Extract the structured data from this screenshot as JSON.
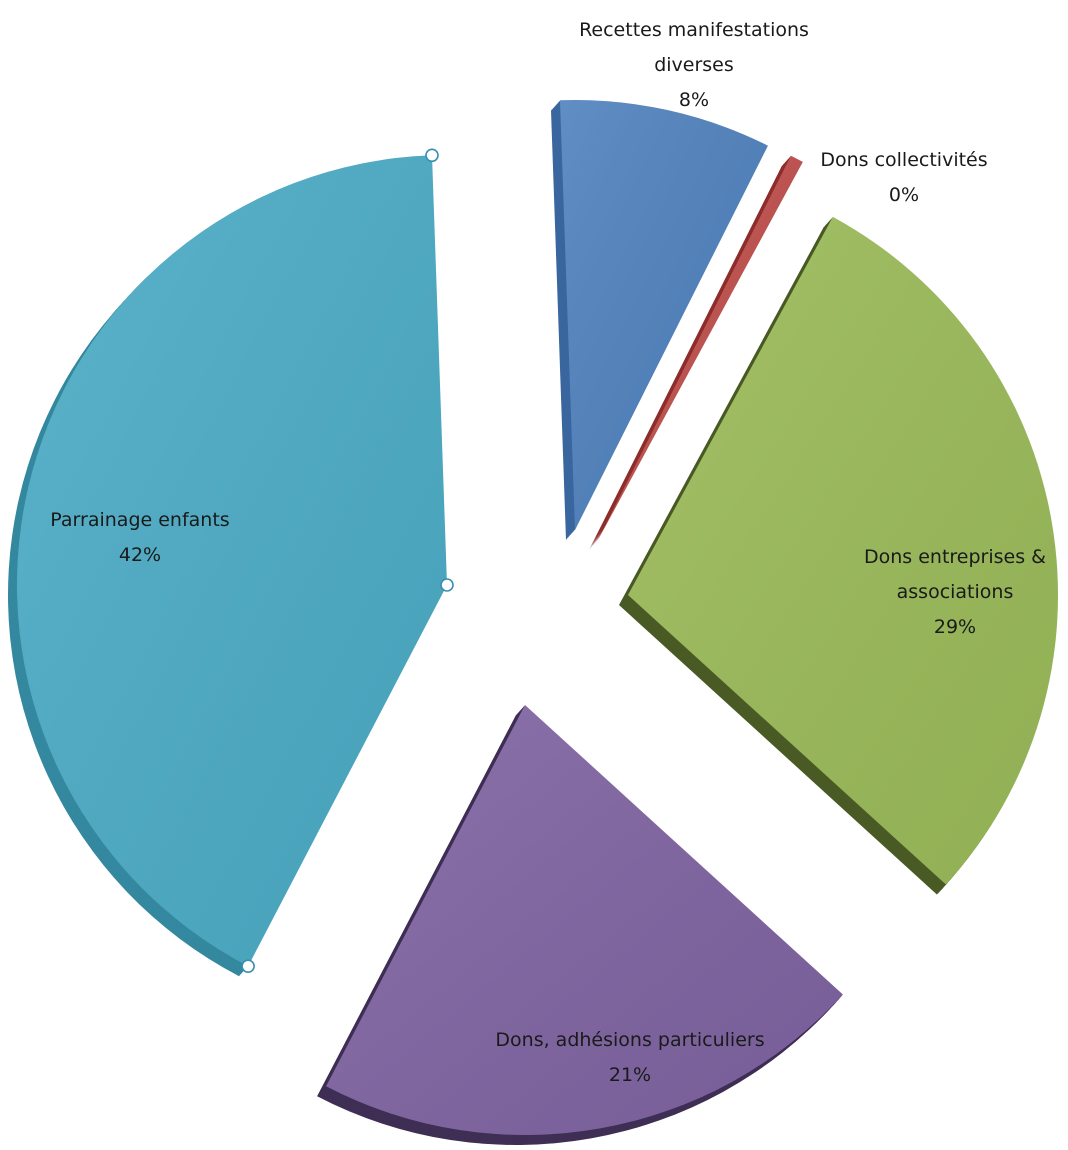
{
  "chart_data": {
    "type": "pie",
    "style": "3d-exploded",
    "slices": [
      {
        "name": "Recettes manifestations diverses",
        "label_lines": [
          "Recettes manifestations",
          "diverses"
        ],
        "percent_label": "8%",
        "value": 8,
        "color": "#4f81bd",
        "side_color": "#3a669f"
      },
      {
        "name": "Dons collectivités",
        "label_lines": [
          "Dons collectivités"
        ],
        "percent_label": "0%",
        "value": 0.5,
        "color": "#c0504d",
        "side_color": "#8e2f2c"
      },
      {
        "name": "Dons entreprises & associations",
        "label_lines": [
          "Dons entreprises &",
          "associations"
        ],
        "percent_label": "29%",
        "value": 29,
        "color": "#9bbb59",
        "side_color": "#4a5a25"
      },
      {
        "name": "Dons, adhésions particuliers",
        "label_lines": [
          "Dons, adhésions particuliers"
        ],
        "percent_label": "21%",
        "value": 21,
        "color": "#8064a2",
        "side_color": "#3f2f55"
      },
      {
        "name": "Parrainage enfants",
        "label_lines": [
          "Parrainage enfants"
        ],
        "percent_label": "42%",
        "value": 42,
        "color": "#4bacc6",
        "side_color": "#34889f"
      }
    ]
  }
}
